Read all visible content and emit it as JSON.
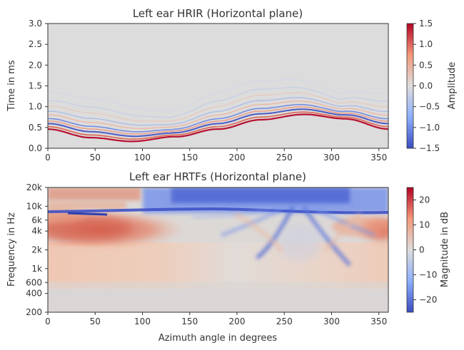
{
  "chart_data": [
    {
      "type": "heatmap",
      "title": "Left ear HRIR (Horizontal plane)",
      "xlabel": "",
      "ylabel": "Time in ms",
      "xlim": [
        0,
        360
      ],
      "ylim": [
        0,
        3.0
      ],
      "xticks": [
        0,
        50,
        100,
        150,
        200,
        250,
        300,
        350
      ],
      "yticks": [
        0.0,
        0.5,
        1.0,
        1.5,
        2.0,
        2.5,
        3.0
      ],
      "ytick_labels": [
        "0.0",
        "0.5",
        "1.0",
        "1.5",
        "2.0",
        "2.5",
        "3.0"
      ],
      "colormap": "coolwarm",
      "colorbar": {
        "label": "Amplitude",
        "range": [
          -1.5,
          1.5
        ],
        "ticks": [
          1.5,
          1.0,
          0.5,
          0.0,
          -0.5,
          -1.0,
          -1.5
        ],
        "tick_labels": [
          "1.5",
          "1.0",
          "0.5",
          "0.0",
          "−0.5",
          "−1.0",
          "−1.5"
        ]
      },
      "onset_curve": {
        "azimuth_deg": [
          0,
          45,
          90,
          135,
          180,
          225,
          270,
          315,
          360
        ],
        "onset_ms": [
          0.52,
          0.32,
          0.22,
          0.32,
          0.52,
          0.75,
          0.87,
          0.75,
          0.52
        ]
      },
      "background_color": "#dcdcdc"
    },
    {
      "type": "heatmap",
      "title": "Left ear HRTFs (Horizontal plane)",
      "xlabel": "Azimuth angle in degrees",
      "ylabel": "Frequency in Hz",
      "xlim": [
        0,
        360
      ],
      "ylim": [
        200,
        20000
      ],
      "yscale": "log",
      "xticks": [
        0,
        50,
        100,
        150,
        200,
        250,
        300,
        350
      ],
      "yticks": [
        200,
        400,
        600,
        1000,
        2000,
        4000,
        6000,
        10000,
        20000
      ],
      "ytick_labels": [
        "200",
        "400",
        "600",
        "1k",
        "2k",
        "4k",
        "6k",
        "10k",
        "20k"
      ],
      "colormap": "coolwarm",
      "colorbar": {
        "label": "Magnitude in dB",
        "range": [
          -25,
          25
        ],
        "ticks": [
          20,
          10,
          0,
          -10,
          -20
        ],
        "tick_labels": [
          "20",
          "10",
          "0",
          "−10",
          "−20"
        ]
      },
      "features": [
        {
          "azimuth_deg": [
            0,
            180
          ],
          "freq_hz": [
            2500,
            6000
          ],
          "level_db": 15
        },
        {
          "azimuth_deg": [
            0,
            60
          ],
          "freq_hz": [
            14000,
            20000
          ],
          "level_db": 12
        },
        {
          "azimuth_deg": [
            180,
            360
          ],
          "freq_hz": [
            6500,
            20000
          ],
          "level_db": -22
        },
        {
          "azimuth_deg": [
            320,
            360
          ],
          "freq_hz": [
            2500,
            6000
          ],
          "level_db": 14
        },
        {
          "azimuth_deg": [
            190,
            330
          ],
          "freq_hz": [
            1000,
            5000
          ],
          "level_db": -15
        }
      ]
    }
  ]
}
